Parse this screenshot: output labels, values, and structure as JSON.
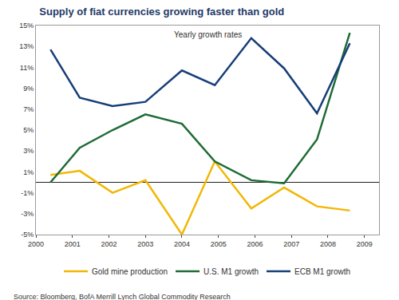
{
  "chart_data": {
    "type": "line",
    "title": "Supply of fiat currencies growing faster than gold",
    "subtitle": "Yearly growth rates",
    "source": "Source: Bloomberg, BofA Merrill Lynch Global Commodity Research",
    "x": [
      2000.4,
      2001.2,
      2002.1,
      2003.0,
      2004.0,
      2004.9,
      2005.9,
      2006.8,
      2007.7,
      2008.6
    ],
    "series": [
      {
        "name": "Gold mine production",
        "color": "#f2b705",
        "values": [
          0.7,
          1.1,
          -1.0,
          0.2,
          -5.0,
          2.0,
          -2.5,
          -0.5,
          -2.3,
          -2.7
        ]
      },
      {
        "name": "U.S. M1 growth",
        "color": "#1e6b35",
        "values": [
          0.0,
          3.3,
          5.0,
          6.5,
          5.6,
          2.0,
          0.2,
          -0.1,
          4.1,
          14.3
        ]
      },
      {
        "name": "ECB M1 growth",
        "color": "#173e78",
        "values": [
          12.7,
          8.1,
          7.3,
          7.7,
          10.7,
          9.3,
          13.8,
          10.9,
          6.6,
          13.3
        ]
      }
    ],
    "xlim": [
      2000,
      2009.4
    ],
    "xticks": [
      2000,
      2001,
      2002,
      2003,
      2004,
      2005,
      2006,
      2007,
      2008,
      2009
    ],
    "ylim": [
      -5,
      15
    ],
    "yticks": [
      {
        "value": -5,
        "label": "-5%"
      },
      {
        "value": -3,
        "label": "-3%"
      },
      {
        "value": -1,
        "label": "-1%"
      },
      {
        "value": 1,
        "label": "1%"
      },
      {
        "value": 3,
        "label": "3%"
      },
      {
        "value": 5,
        "label": "5%"
      },
      {
        "value": 7,
        "label": "7%"
      },
      {
        "value": 9,
        "label": "9%"
      },
      {
        "value": 11,
        "label": "11%"
      },
      {
        "value": 13,
        "label": "13%"
      },
      {
        "value": 15,
        "label": "15%"
      }
    ],
    "grid": false,
    "legend": "bottom"
  }
}
